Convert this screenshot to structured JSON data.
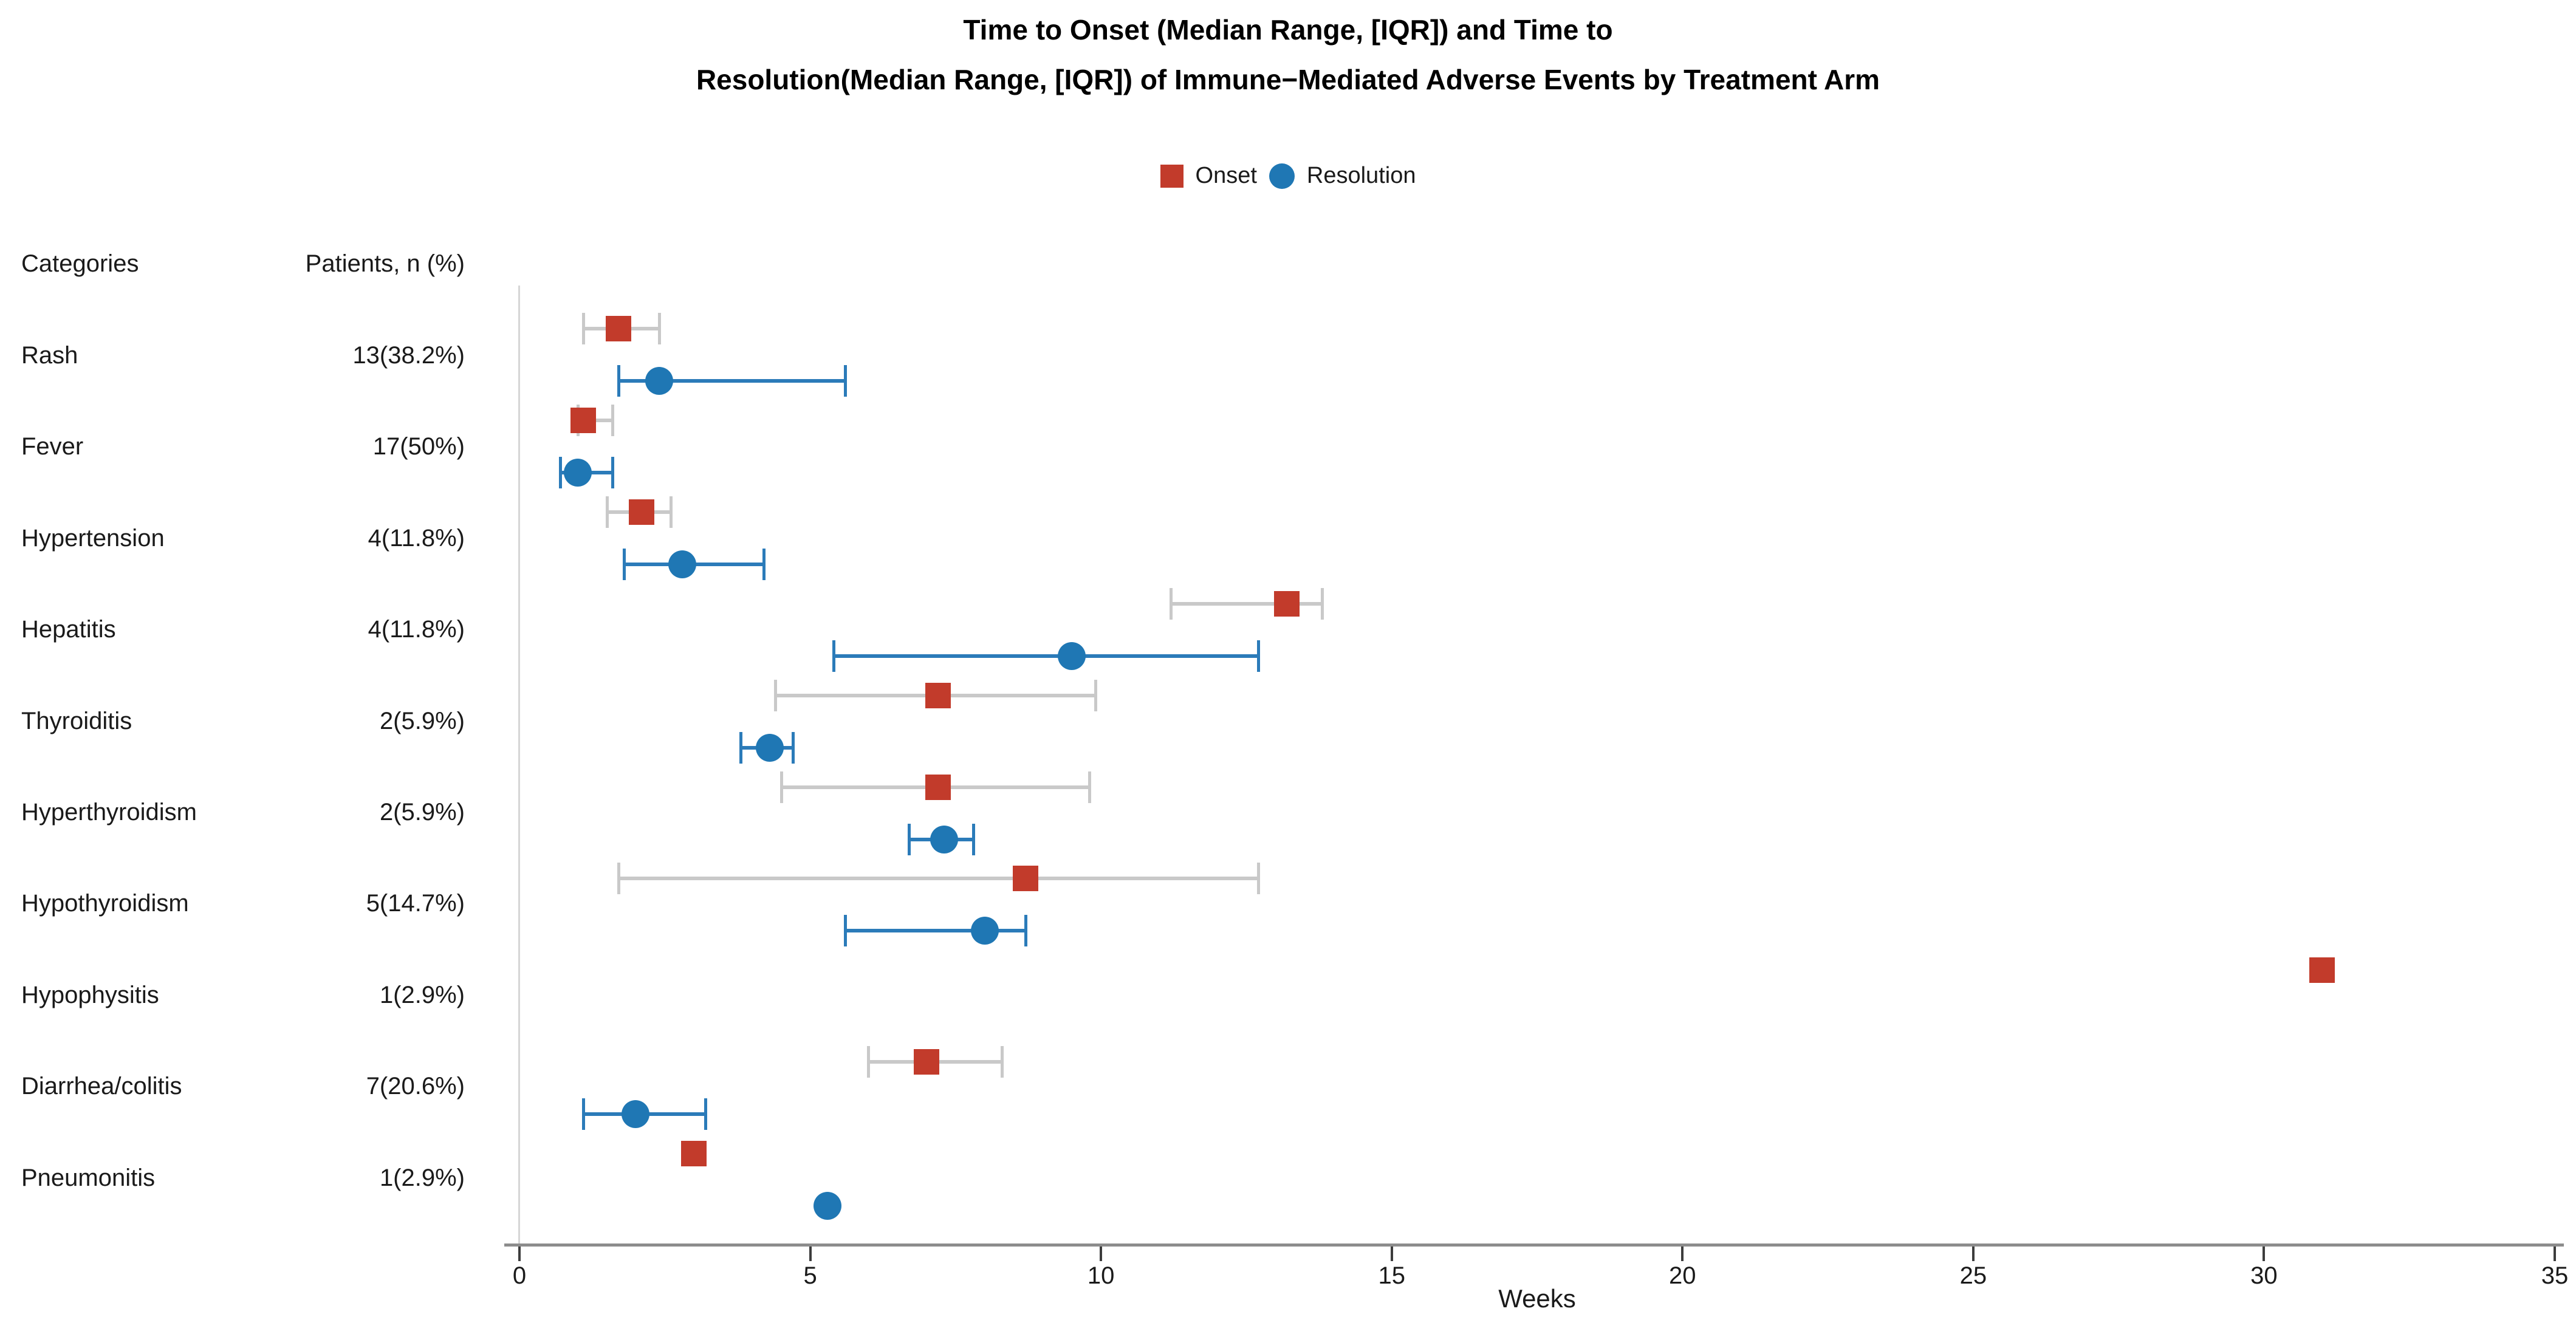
{
  "title": {
    "line1": "Time to Onset (Median Range, [IQR]) and Time to",
    "line2": "Resolution(Median Range, [IQR]) of Immune−Mediated Adverse Events by Treatment Arm"
  },
  "legend": [
    {
      "label": "Onset",
      "marker": "square",
      "color": "#c23b2b"
    },
    {
      "label": "Resolution",
      "marker": "circle",
      "color": "#1f77b4"
    }
  ],
  "table_headers": {
    "categories": "Categories",
    "patients": "Patients, n (%)"
  },
  "colors": {
    "onset_marker": "#c23b2b",
    "resolution_marker": "#1f77b4",
    "onset_errorbar": "#c9c9c9",
    "resolution_errorbar": "#2b7bb9",
    "axis_line": "#8c8c8c",
    "zero_line": "#d6d6d6"
  },
  "chart_data": {
    "type": "scatter",
    "xlabel": "Weeks",
    "xlim": [
      0,
      35
    ],
    "x_ticks": [
      0,
      5,
      10,
      15,
      20,
      25,
      30,
      35
    ],
    "legend_position": "top-center",
    "grid": false,
    "rows": [
      {
        "category": "Rash",
        "patients": "13(38.2%)",
        "onset": {
          "median": 1.7,
          "low": 1.1,
          "high": 2.4
        },
        "resolution": {
          "median": 2.4,
          "low": 1.7,
          "high": 5.6
        }
      },
      {
        "category": "Fever",
        "patients": "17(50%)",
        "onset": {
          "median": 1.1,
          "low": 1.0,
          "high": 1.6
        },
        "resolution": {
          "median": 1.0,
          "low": 0.7,
          "high": 1.6
        }
      },
      {
        "category": "Hypertension",
        "patients": "4(11.8%)",
        "onset": {
          "median": 2.1,
          "low": 1.5,
          "high": 2.6
        },
        "resolution": {
          "median": 2.8,
          "low": 1.8,
          "high": 4.2
        }
      },
      {
        "category": "Hepatitis",
        "patients": "4(11.8%)",
        "onset": {
          "median": 13.2,
          "low": 11.2,
          "high": 13.8
        },
        "resolution": {
          "median": 9.5,
          "low": 5.4,
          "high": 12.7
        }
      },
      {
        "category": "Thyroiditis",
        "patients": "2(5.9%)",
        "onset": {
          "median": 7.2,
          "low": 4.4,
          "high": 9.9
        },
        "resolution": {
          "median": 4.3,
          "low": 3.8,
          "high": 4.7
        }
      },
      {
        "category": "Hyperthyroidism",
        "patients": "2(5.9%)",
        "onset": {
          "median": 7.2,
          "low": 4.5,
          "high": 9.8
        },
        "resolution": {
          "median": 7.3,
          "low": 6.7,
          "high": 7.8
        }
      },
      {
        "category": "Hypothyroidism",
        "patients": "5(14.7%)",
        "onset": {
          "median": 8.7,
          "low": 1.7,
          "high": 12.7
        },
        "resolution": {
          "median": 8.0,
          "low": 5.6,
          "high": 8.7
        }
      },
      {
        "category": "Hypophysitis",
        "patients": "1(2.9%)",
        "onset": {
          "median": 31.0,
          "low": null,
          "high": null
        },
        "resolution": null
      },
      {
        "category": "Diarrhea/colitis",
        "patients": "7(20.6%)",
        "onset": {
          "median": 7.0,
          "low": 6.0,
          "high": 8.3
        },
        "resolution": {
          "median": 2.0,
          "low": 1.1,
          "high": 3.2
        }
      },
      {
        "category": "Pneumonitis",
        "patients": "1(2.9%)",
        "onset": {
          "median": 3.0,
          "low": null,
          "high": null
        },
        "resolution": {
          "median": 5.3,
          "low": null,
          "high": null
        }
      }
    ]
  }
}
